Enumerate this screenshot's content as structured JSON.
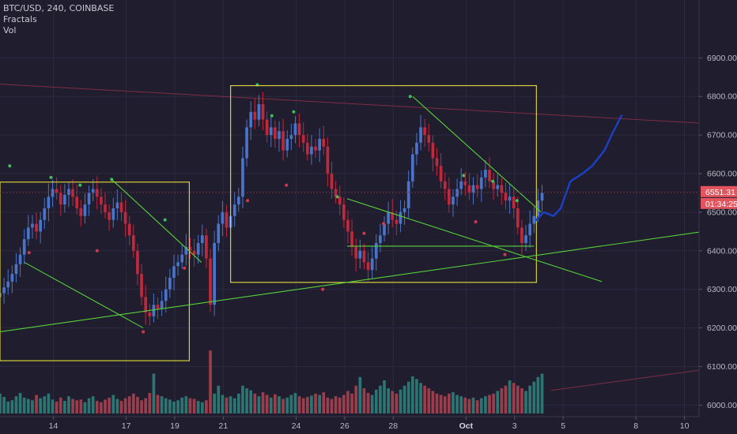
{
  "header": {
    "symbol_line": "BTC/USD, 240, COINBASE",
    "indicator_1": "Fractals",
    "indicator_2": "Vol"
  },
  "price_badges": {
    "last_price": "6551.31",
    "countdown": "01:34:25",
    "color": "#e2545e"
  },
  "colors": {
    "background": "#1f1d2e",
    "up_candle": "#4a74c9",
    "down_candle": "#c0283b",
    "up_volume": "#2d7f7a",
    "down_volume": "#a8414f",
    "trendline": "#57d33a",
    "box": "#d8cf3a",
    "projection": "#1c3fc4",
    "resistance": "#7c2e44"
  },
  "chart_data": {
    "type": "candlestick",
    "ylim": [
      5970,
      7050
    ],
    "y_ticks": [
      "6900.00",
      "6800.00",
      "6700.00",
      "6600.00",
      "6500.00",
      "6400.00",
      "6300.00",
      "6200.00",
      "6100.00",
      "6000.00"
    ],
    "x_ticks": [
      "14",
      "17",
      "19",
      "21",
      "24",
      "26",
      "28",
      "Oct",
      "3",
      "5",
      "8",
      "10"
    ],
    "x_tick_days": [
      14,
      17,
      19,
      21,
      24,
      26,
      28,
      31,
      33,
      35,
      38,
      40
    ],
    "bold_x_tick": "Oct",
    "candle_start_day": 11.8,
    "candles_per_day": 6,
    "closes": [
      6290,
      6305,
      6320,
      6340,
      6365,
      6390,
      6430,
      6460,
      6470,
      6450,
      6480,
      6510,
      6540,
      6560,
      6550,
      6520,
      6545,
      6560,
      6540,
      6510,
      6490,
      6520,
      6550,
      6560,
      6540,
      6520,
      6500,
      6480,
      6510,
      6525,
      6500,
      6470,
      6440,
      6400,
      6340,
      6280,
      6240,
      6230,
      6260,
      6250,
      6270,
      6300,
      6330,
      6360,
      6370,
      6390,
      6410,
      6400,
      6390,
      6420,
      6440,
      6380,
      6260,
      6420,
      6470,
      6500,
      6460,
      6490,
      6520,
      6540,
      6640,
      6720,
      6760,
      6740,
      6780,
      6740,
      6700,
      6720,
      6690,
      6710,
      6660,
      6690,
      6700,
      6730,
      6700,
      6680,
      6650,
      6670,
      6660,
      6690,
      6670,
      6600,
      6560,
      6540,
      6520,
      6480,
      6450,
      6410,
      6380,
      6400,
      6370,
      6350,
      6380,
      6420,
      6440,
      6470,
      6500,
      6480,
      6470,
      6500,
      6510,
      6580,
      6650,
      6680,
      6720,
      6700,
      6680,
      6640,
      6620,
      6580,
      6560,
      6520,
      6540,
      6560,
      6580,
      6570,
      6550,
      6570,
      6560,
      6590,
      6610,
      6580,
      6560,
      6570,
      6550,
      6530,
      6540,
      6510,
      6460,
      6420,
      6440,
      6470,
      6490,
      6530,
      6550
    ],
    "volume_ylim": [
      0,
      1000
    ],
    "volumes": [
      300,
      250,
      180,
      200,
      260,
      310,
      240,
      220,
      200,
      280,
      230,
      260,
      300,
      210,
      180,
      240,
      190,
      260,
      220,
      200,
      210,
      170,
      230,
      260,
      190,
      170,
      210,
      240,
      280,
      220,
      190,
      230,
      260,
      300,
      250,
      200,
      230,
      310,
      600,
      280,
      260,
      230,
      210,
      180,
      200,
      240,
      260,
      230,
      220,
      190,
      170,
      200,
      950,
      300,
      420,
      280,
      240,
      260,
      230,
      300,
      420,
      380,
      350,
      300,
      260,
      320,
      280,
      240,
      290,
      260,
      220,
      240,
      280,
      310,
      260,
      230,
      250,
      270,
      300,
      280,
      320,
      240,
      220,
      260,
      240,
      280,
      340,
      300,
      420,
      550,
      380,
      310,
      280,
      360,
      420,
      500,
      380,
      340,
      300,
      360,
      420,
      480,
      560,
      520,
      460,
      420,
      380,
      340,
      300,
      280,
      260,
      300,
      320,
      280,
      260,
      240,
      220,
      240,
      200,
      230,
      260,
      280,
      300,
      340,
      380,
      420,
      500,
      460,
      420,
      380,
      340,
      420,
      480,
      550,
      600
    ],
    "trendlines": [
      {
        "from": [
          12.8,
          6370
        ],
        "to": [
          17.7,
          6200
        ]
      },
      {
        "from": [
          11.8,
          6190
        ],
        "to": [
          40.8,
          6450
        ]
      },
      {
        "from": [
          26.1,
          6535
        ],
        "to": [
          36.6,
          6320
        ]
      },
      {
        "from": [
          16.4,
          6585
        ],
        "to": [
          20.1,
          6370
        ]
      },
      {
        "from": [
          28.8,
          6800
        ],
        "to": [
          34.1,
          6500
        ]
      },
      {
        "from": [
          26.1,
          6412
        ],
        "to": [
          33.8,
          6412
        ]
      }
    ],
    "boxes": [
      {
        "x": [
          11.8,
          19.6
        ],
        "y": [
          6115,
          6578
        ]
      },
      {
        "x": [
          21.3,
          33.9
        ],
        "y": [
          6318,
          6828
        ]
      }
    ],
    "resistance_lines": [
      {
        "from": [
          11.8,
          6832
        ],
        "to": [
          41.5,
          6728
        ]
      },
      {
        "from": [
          34.5,
          6038
        ],
        "to": [
          41.5,
          6098
        ]
      }
    ],
    "projection": [
      [
        33.9,
        6480
      ],
      [
        34.2,
        6500
      ],
      [
        34.6,
        6490
      ],
      [
        34.9,
        6510
      ],
      [
        35.3,
        6580
      ],
      [
        35.8,
        6600
      ],
      [
        36.2,
        6620
      ],
      [
        36.7,
        6660
      ],
      [
        37.0,
        6700
      ],
      [
        37.4,
        6750
      ]
    ]
  }
}
